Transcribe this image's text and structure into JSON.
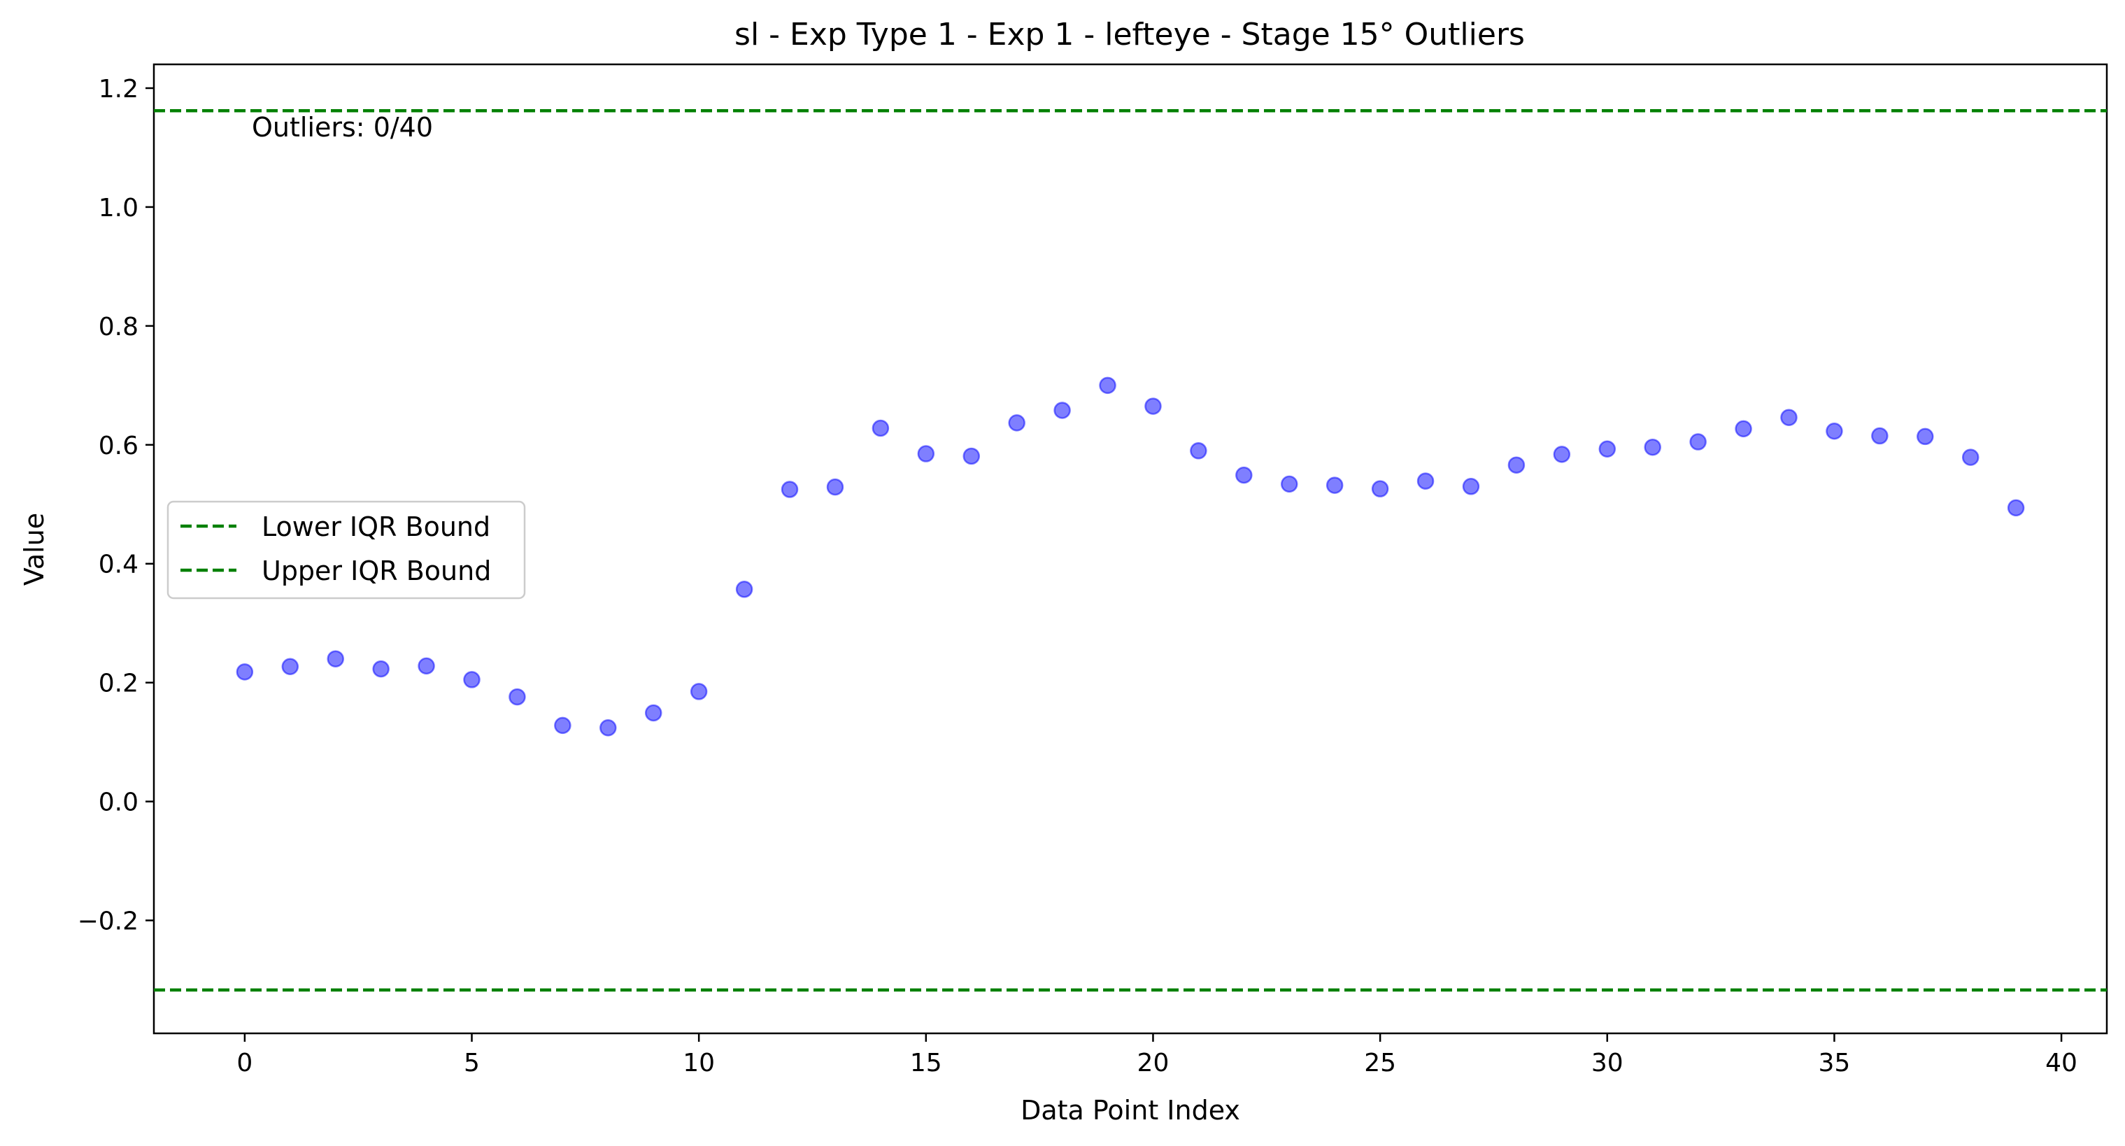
{
  "chart_data": {
    "type": "scatter",
    "title": "sl - Exp Type 1 - Exp 1 - lefteye - Stage 15° Outliers",
    "xlabel": "Data Point Index",
    "ylabel": "Value",
    "xlim": [
      -2,
      41
    ],
    "ylim": [
      -0.39,
      1.24
    ],
    "xticks": [
      0,
      5,
      10,
      15,
      20,
      25,
      30,
      35,
      40
    ],
    "xtick_labels": [
      "0",
      "5",
      "10",
      "15",
      "20",
      "25",
      "30",
      "35",
      "40"
    ],
    "yticks": [
      -0.2,
      0.0,
      0.2,
      0.4,
      0.6,
      0.8,
      1.0,
      1.2
    ],
    "ytick_labels": [
      "−0.2",
      "0.0",
      "0.2",
      "0.4",
      "0.6",
      "0.8",
      "1.0",
      "1.2"
    ],
    "grid": false,
    "series": [
      {
        "name": "",
        "kind": "scatter",
        "color": "#0000ff",
        "x": [
          0,
          1,
          2,
          3,
          4,
          5,
          6,
          7,
          8,
          9,
          10,
          11,
          12,
          13,
          14,
          15,
          16,
          17,
          18,
          19,
          20,
          21,
          22,
          23,
          24,
          25,
          26,
          27,
          28,
          29,
          30,
          31,
          32,
          33,
          34,
          35,
          36,
          37,
          38,
          39
        ],
        "y": [
          0.218,
          0.227,
          0.24,
          0.223,
          0.228,
          0.205,
          0.176,
          0.128,
          0.124,
          0.149,
          0.185,
          0.357,
          0.525,
          0.529,
          0.628,
          0.585,
          0.581,
          0.637,
          0.658,
          0.7,
          0.665,
          0.59,
          0.549,
          0.534,
          0.532,
          0.526,
          0.539,
          0.53,
          0.566,
          0.584,
          0.593,
          0.596,
          0.605,
          0.627,
          0.646,
          0.623,
          0.615,
          0.614,
          0.579,
          0.494
        ]
      }
    ],
    "hlines": [
      {
        "name": "Lower IQR Bound",
        "y": -0.317,
        "color": "#008000",
        "style": "dashed"
      },
      {
        "name": "Upper IQR Bound",
        "y": 1.162,
        "color": "#008000",
        "style": "dashed"
      }
    ],
    "legend": {
      "placement": "center-left",
      "entries": [
        "Lower IQR Bound",
        "Upper IQR Bound"
      ]
    },
    "annotation": "Outliers: 0/40"
  }
}
